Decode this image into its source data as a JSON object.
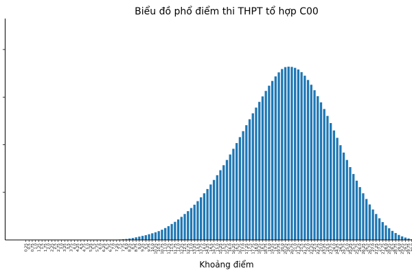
{
  "chart_data": {
    "type": "bar",
    "title": "Biểu đồ phổ điểm thi THPT tổ hợp C00",
    "xlabel": "Khoảng điểm",
    "ylabel": "",
    "grid": false,
    "legend": "none",
    "bar_color": "#1f77b4",
    "categories": [
      "0.25",
      "0.5",
      "0.75",
      "1.0",
      "1.25",
      "1.5",
      "1.75",
      "2.0",
      "2.25",
      "2.5",
      "2.75",
      "3.0",
      "3.25",
      "3.5",
      "3.75",
      "4.0",
      "4.25",
      "4.5",
      "4.75",
      "5.0",
      "5.25",
      "5.5",
      "5.75",
      "6.0",
      "6.25",
      "6.5",
      "6.75",
      "7.0",
      "7.25",
      "7.5",
      "7.75",
      "8.0",
      "8.25",
      "8.5",
      "8.75",
      "9.0",
      "9.25",
      "9.5",
      "9.75",
      "10.0",
      "10.25",
      "10.5",
      "10.75",
      "11.0",
      "11.25",
      "11.5",
      "11.75",
      "12.0",
      "12.25",
      "12.5",
      "12.75",
      "13.0",
      "13.25",
      "13.5",
      "13.75",
      "14.0",
      "14.25",
      "14.5",
      "14.75",
      "15.0",
      "15.25",
      "15.5",
      "15.75",
      "16.0",
      "16.25",
      "16.5",
      "16.75",
      "17.0",
      "17.25",
      "17.5",
      "17.75",
      "18.0",
      "18.25",
      "18.5",
      "18.75",
      "19.0",
      "19.25",
      "19.5",
      "19.75",
      "20.0",
      "20.25",
      "20.5",
      "20.75",
      "21.0",
      "21.25",
      "21.5",
      "21.75",
      "22.0",
      "22.25",
      "22.5",
      "22.75",
      "23.0",
      "23.25",
      "23.5",
      "23.75",
      "24.0",
      "24.25",
      "24.5",
      "24.75",
      "25.0",
      "25.25",
      "25.5",
      "25.75",
      "26.0",
      "26.25",
      "26.5",
      "26.75",
      "27.0",
      "27.25",
      "27.5",
      "27.75",
      "28.0",
      "28.25",
      "28.5",
      "28.75",
      "29.0",
      "29.25",
      "29.5",
      "29.75",
      "30.0"
    ],
    "values": [
      0,
      0,
      0,
      0,
      0,
      0,
      0,
      0,
      0,
      0,
      0,
      0,
      0,
      0,
      0,
      0,
      0,
      0,
      0,
      0,
      0,
      0,
      0,
      0,
      0,
      0,
      0,
      0,
      0.1,
      0.2,
      0.3,
      0.4,
      0.6,
      0.8,
      1.1,
      1.4,
      1.7,
      2.0,
      2.4,
      2.8,
      3.2,
      3.7,
      4.3,
      5.0,
      5.8,
      6.7,
      7.6,
      8.6,
      9.7,
      10.9,
      12.1,
      13.4,
      14.8,
      16.3,
      17.9,
      19.6,
      21.4,
      23.3,
      25.2,
      27.2,
      29.3,
      31.4,
      33.6,
      35.9,
      38.3,
      40.7,
      43.2,
      45.7,
      48.2,
      50.7,
      53.2,
      55.6,
      58.0,
      60.3,
      62.6,
      64.8,
      66.8,
      68.7,
      70.4,
      71.8,
      72.6,
      72.8,
      72.7,
      72.3,
      71.6,
      70.5,
      69.0,
      67.2,
      65.2,
      62.9,
      60.4,
      57.8,
      55.0,
      52.1,
      49.1,
      46.0,
      42.9,
      39.8,
      36.7,
      33.6,
      30.6,
      27.7,
      24.9,
      22.2,
      19.6,
      17.2,
      14.9,
      12.8,
      10.9,
      9.1,
      7.5,
      6.1,
      4.9,
      3.8,
      2.9,
      2.1,
      1.5,
      1.0,
      0.6,
      0.3
    ],
    "ylim": [
      0,
      93
    ]
  }
}
